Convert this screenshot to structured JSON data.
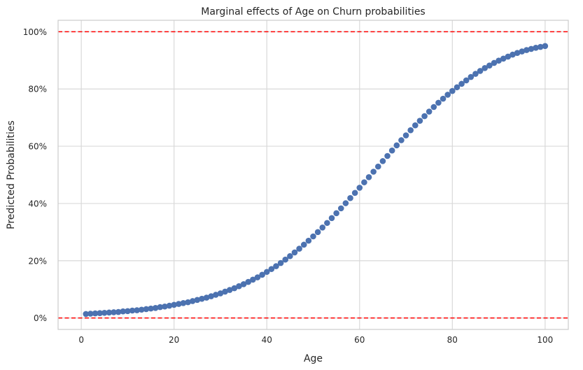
{
  "chart_data": {
    "type": "scatter",
    "title": "Marginal effects of Age on Churn probabilities",
    "xlabel": "Age",
    "ylabel": "Predicted Probabilities",
    "xlim": [
      -5,
      105
    ],
    "ylim": [
      -0.04,
      1.04
    ],
    "x_ticks": [
      0,
      20,
      40,
      60,
      80,
      100
    ],
    "x_tick_labels": [
      "0",
      "20",
      "40",
      "60",
      "80",
      "100"
    ],
    "y_ticks": [
      0,
      0.2,
      0.4,
      0.6,
      0.8,
      1.0
    ],
    "y_tick_labels": [
      "0%",
      "20%",
      "40%",
      "60%",
      "80%",
      "100%"
    ],
    "grid": true,
    "reference_lines": [
      0.0,
      1.0
    ],
    "colors": {
      "series": "#4c72b0",
      "reference": "#ff0000",
      "grid": "#d9d9d9",
      "frame": "#cccccc",
      "text": "#262626"
    },
    "series": [
      {
        "x": [
          1,
          2,
          3,
          4,
          5,
          6,
          7,
          8,
          9,
          10,
          11,
          12,
          13,
          14,
          15,
          16,
          17,
          18,
          19,
          20,
          21,
          22,
          23,
          24,
          25,
          26,
          27,
          28,
          29,
          30,
          31,
          32,
          33,
          34,
          35,
          36,
          37,
          38,
          39,
          40,
          41,
          42,
          43,
          44,
          45,
          46,
          47,
          48,
          49,
          50,
          51,
          52,
          53,
          54,
          55,
          56,
          57,
          58,
          59,
          60,
          61,
          62,
          63,
          64,
          65,
          66,
          67,
          68,
          69,
          70,
          71,
          72,
          73,
          74,
          75,
          76,
          77,
          78,
          79,
          80,
          81,
          82,
          83,
          84,
          85,
          86,
          87,
          88,
          89,
          90,
          91,
          92,
          93,
          94,
          95,
          96,
          97,
          98,
          99,
          100
        ],
        "y": [
          0.014,
          0.015,
          0.016,
          0.017,
          0.018,
          0.019,
          0.02,
          0.021,
          0.023,
          0.024,
          0.026,
          0.027,
          0.029,
          0.031,
          0.033,
          0.035,
          0.038,
          0.04,
          0.043,
          0.046,
          0.049,
          0.052,
          0.055,
          0.059,
          0.063,
          0.067,
          0.071,
          0.076,
          0.081,
          0.086,
          0.092,
          0.098,
          0.104,
          0.111,
          0.118,
          0.126,
          0.134,
          0.142,
          0.151,
          0.161,
          0.171,
          0.181,
          0.192,
          0.204,
          0.216,
          0.229,
          0.242,
          0.256,
          0.27,
          0.285,
          0.3,
          0.316,
          0.332,
          0.349,
          0.366,
          0.383,
          0.401,
          0.419,
          0.437,
          0.455,
          0.474,
          0.492,
          0.511,
          0.529,
          0.548,
          0.566,
          0.585,
          0.603,
          0.621,
          0.638,
          0.656,
          0.673,
          0.689,
          0.705,
          0.721,
          0.737,
          0.752,
          0.766,
          0.78,
          0.793,
          0.806,
          0.818,
          0.83,
          0.842,
          0.853,
          0.863,
          0.873,
          0.882,
          0.891,
          0.899,
          0.906,
          0.913,
          0.92,
          0.926,
          0.931,
          0.936,
          0.94,
          0.944,
          0.947,
          0.95
        ]
      }
    ]
  }
}
